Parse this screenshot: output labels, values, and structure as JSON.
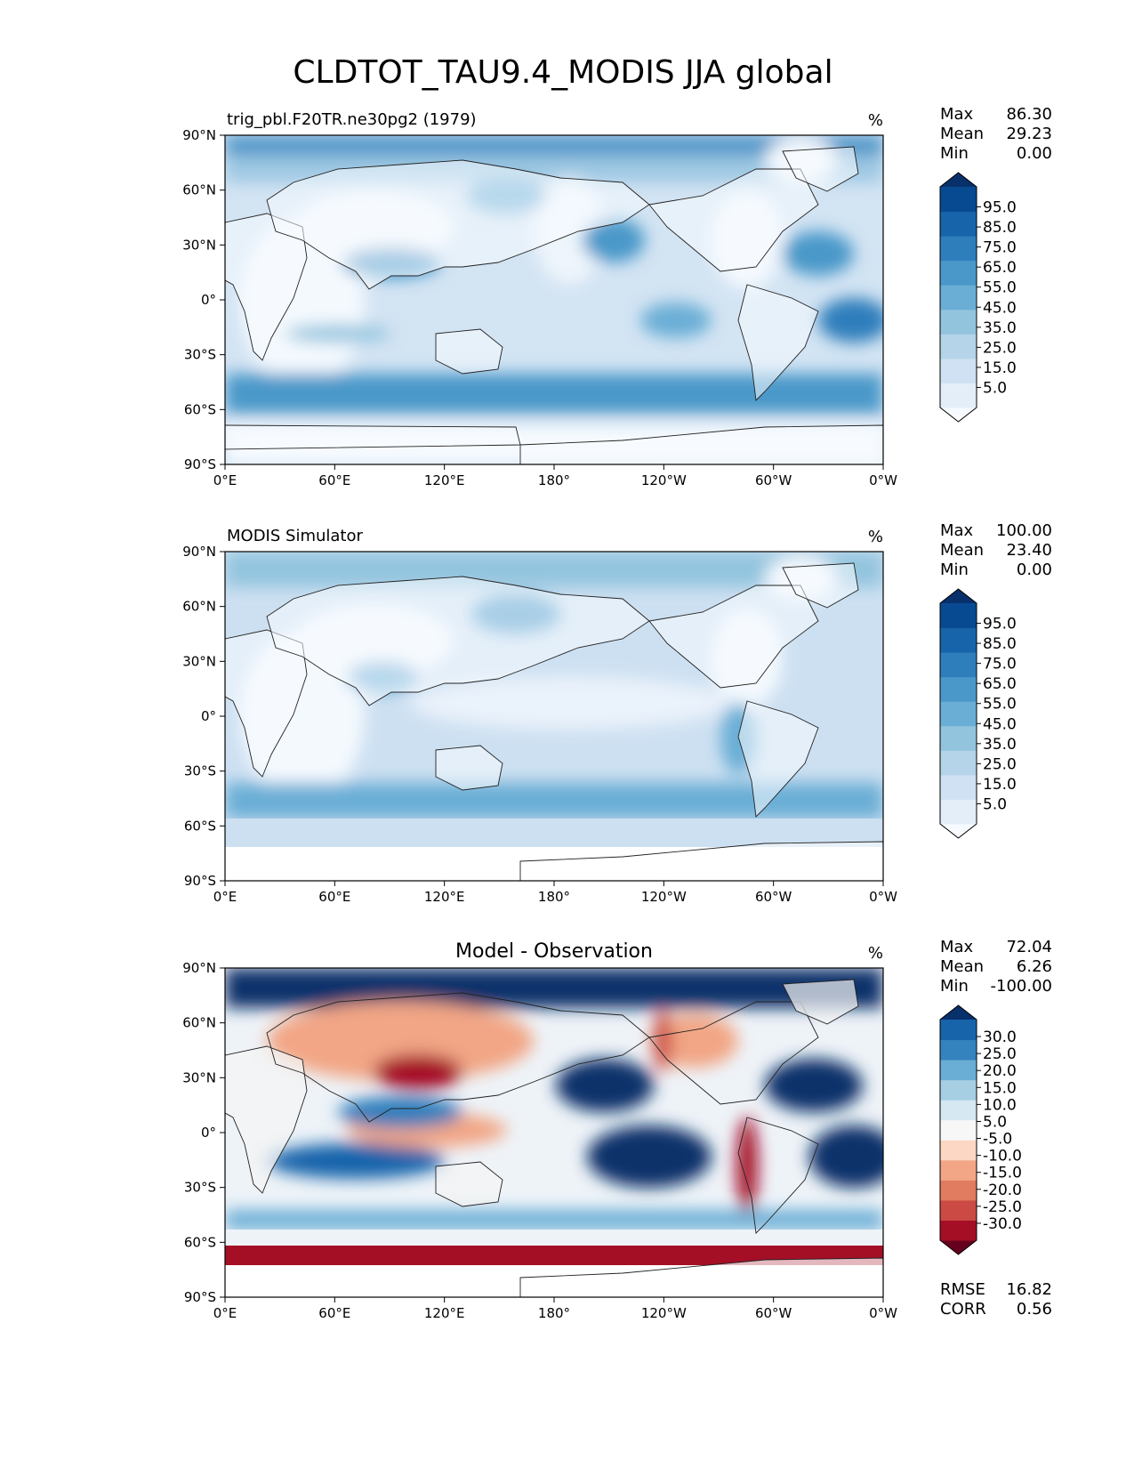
{
  "figure": {
    "title": "CLDTOT_TAU9.4_MODIS JJA global",
    "x_ticks": [
      "0°E",
      "60°E",
      "120°E",
      "180°",
      "120°W",
      "60°W",
      "0°W"
    ],
    "y_ticks": [
      "90°N",
      "60°N",
      "30°N",
      "0°",
      "30°S",
      "60°S",
      "90°S"
    ]
  },
  "chart_data": [
    {
      "type": "heatmap",
      "panel": "test",
      "title_left": "trig_pbl.F20TR.ne30pg2 (1979)",
      "title_center": "",
      "units": "%",
      "stats": [
        {
          "label": "Max",
          "value": "86.30"
        },
        {
          "label": "Mean",
          "value": "29.23"
        },
        {
          "label": "Min",
          "value": "0.00"
        }
      ],
      "colorbar": {
        "tick_labels": [
          "95.0",
          "85.0",
          "75.0",
          "65.0",
          "55.0",
          "45.0",
          "35.0",
          "25.0",
          "15.0",
          "5.0"
        ],
        "colors": [
          "#f7fbff",
          "#e3eef9",
          "#cfe1f2",
          "#b5d4e9",
          "#93c4de",
          "#6aaed6",
          "#4a98c9",
          "#2e7ebc",
          "#1764ab",
          "#084a91",
          "#08306b"
        ]
      },
      "x_range": [
        0,
        360
      ],
      "y_range": [
        -90,
        90
      ]
    },
    {
      "type": "heatmap",
      "panel": "reference",
      "title_left": "MODIS Simulator",
      "title_center": "",
      "units": "%",
      "stats": [
        {
          "label": "Max",
          "value": "100.00"
        },
        {
          "label": "Mean",
          "value": "23.40"
        },
        {
          "label": "Min",
          "value": "0.00"
        }
      ],
      "colorbar": {
        "tick_labels": [
          "95.0",
          "85.0",
          "75.0",
          "65.0",
          "55.0",
          "45.0",
          "35.0",
          "25.0",
          "15.0",
          "5.0"
        ],
        "colors": [
          "#f7fbff",
          "#e3eef9",
          "#cfe1f2",
          "#b5d4e9",
          "#93c4de",
          "#6aaed6",
          "#4a98c9",
          "#2e7ebc",
          "#1764ab",
          "#084a91",
          "#08306b"
        ]
      },
      "x_range": [
        0,
        360
      ],
      "y_range": [
        -90,
        90
      ]
    },
    {
      "type": "heatmap",
      "panel": "difference",
      "title_left": "",
      "title_center": "Model - Observation",
      "units": "%",
      "stats": [
        {
          "label": "Max",
          "value": "72.04"
        },
        {
          "label": "Mean",
          "value": "6.26"
        },
        {
          "label": "Min",
          "value": "-100.00"
        }
      ],
      "extra_stats": [
        {
          "label": "RMSE",
          "value": "16.82"
        },
        {
          "label": "CORR",
          "value": "0.56"
        }
      ],
      "colorbar": {
        "tick_labels": [
          "30.0",
          "25.0",
          "20.0",
          "15.0",
          "10.0",
          "5.0",
          "-5.0",
          "-10.0",
          "-15.0",
          "-20.0",
          "-25.0",
          "-30.0"
        ],
        "colors": [
          "#67001f",
          "#a50f26",
          "#cb4a43",
          "#e27c60",
          "#f2a685",
          "#fbd7c4",
          "#f7f7f7",
          "#d6e8f2",
          "#a6cfe4",
          "#6aaed6",
          "#3483be",
          "#1764ab",
          "#08306b"
        ]
      },
      "x_range": [
        0,
        360
      ],
      "y_range": [
        -90,
        90
      ]
    }
  ]
}
